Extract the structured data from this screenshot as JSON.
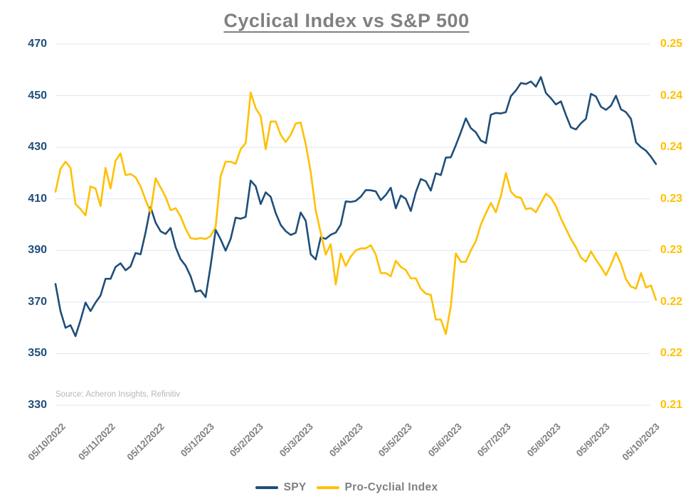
{
  "title": "Cyclical Index vs S&P 500",
  "source_note": "Source: Acheron Insights, Refinitiv",
  "colors": {
    "spy_line": "#1f4e79",
    "pci_line": "#ffc000",
    "left_axis_text": "#1f4e79",
    "right_axis_text": "#ffc000",
    "title_text": "#808080",
    "date_text": "#808080",
    "source_text": "#b7b7b7",
    "gridline": "#dbe5f1",
    "background": "#ffffff"
  },
  "legend": [
    {
      "label": "SPY",
      "color": "#1f4e79"
    },
    {
      "label": "Pro-Cyclial Index",
      "color": "#ffc000"
    }
  ],
  "chart_data": {
    "type": "line",
    "title": "Cyclical Index vs S&P 500",
    "grid": true,
    "legend_position": "bottom",
    "x_tick_labels": [
      "05/10/2022",
      "05/11/2022",
      "05/12/2022",
      "05/1/2023",
      "05/2/2023",
      "05/3/2023",
      "05/4/2023",
      "05/5/2023",
      "05/6/2023",
      "05/7/2023",
      "05/8/2023",
      "05/9/2023",
      "05/10/2023"
    ],
    "sampling_note": "values sampled at ~3-day intervals from 05/10/2022 to 05/10/2023",
    "left_axis": {
      "series": "SPY",
      "min": 330,
      "max": 470,
      "tick_labels": [
        "470",
        "450",
        "430",
        "410",
        "390",
        "370",
        "350",
        "330"
      ]
    },
    "right_axis": {
      "series": "Pro-Cyclial Index",
      "min": 0.215,
      "max": 0.25,
      "tick_labels": [
        "0.25",
        "0.24",
        "0.24",
        "0.23",
        "0.23",
        "0.22",
        "0.22",
        "0.21"
      ]
    },
    "series": [
      {
        "name": "SPY",
        "axis": "left",
        "color": "#1f4e79",
        "values": [
          377,
          366.5,
          360,
          361,
          356.8,
          363,
          369.8,
          366.5,
          369.8,
          372.5,
          379,
          379,
          383.6,
          385,
          382.3,
          383.8,
          389,
          388.5,
          397,
          406.8,
          400.8,
          397.4,
          396.4,
          398.7,
          391.3,
          386.6,
          384.1,
          380,
          374,
          374.5,
          371.9,
          384,
          398,
          394.3,
          389.9,
          394.5,
          402.7,
          402.3,
          403,
          417.1,
          414.9,
          408,
          412.5,
          410.8,
          404.5,
          399.9,
          397.5,
          396,
          396.8,
          404.7,
          401.5,
          388.5,
          386.5,
          395.1,
          394.5,
          396.1,
          396.9,
          400,
          409,
          408.8,
          409.2,
          410.8,
          413.4,
          413.3,
          412.9,
          409.5,
          411.5,
          414.3,
          406.3,
          411.3,
          410,
          405.3,
          412.5,
          417.7,
          416.8,
          413.2,
          419.9,
          419.2,
          426,
          426.1,
          430.8,
          435.8,
          441.2,
          437.4,
          435.8,
          432.6,
          431.6,
          442.6,
          443.3,
          443.1,
          443.6,
          449.8,
          452,
          454.9,
          454.5,
          455.5,
          453.5,
          457.2,
          451,
          449,
          446.6,
          447.8,
          442.5,
          437.7,
          436.9,
          439.3,
          441,
          450.7,
          449.7,
          445.7,
          444.5,
          446.1,
          450,
          444.7,
          443.6,
          441,
          431.9,
          430,
          428.7,
          426.3,
          423.5
        ]
      },
      {
        "name": "Pro-Cyclial Index",
        "axis": "right",
        "color": "#ffc000",
        "values": [
          0.2357,
          0.2379,
          0.2386,
          0.238,
          0.2345,
          0.234,
          0.2334,
          0.2362,
          0.236,
          0.2343,
          0.238,
          0.236,
          0.2387,
          0.2394,
          0.2373,
          0.2374,
          0.2371,
          0.2362,
          0.2349,
          0.2337,
          0.237,
          0.2361,
          0.2352,
          0.2339,
          0.2341,
          0.2333,
          0.2321,
          0.2312,
          0.2311,
          0.2312,
          0.2311,
          0.2314,
          0.2323,
          0.2372,
          0.2386,
          0.2386,
          0.2384,
          0.2398,
          0.2404,
          0.2453,
          0.2438,
          0.243,
          0.2398,
          0.2425,
          0.2425,
          0.2412,
          0.2405,
          0.2412,
          0.2423,
          0.2424,
          0.2403,
          0.2376,
          0.2339,
          0.2317,
          0.2296,
          0.2306,
          0.2267,
          0.2297,
          0.2285,
          0.2294,
          0.23,
          0.2302,
          0.2302,
          0.2305,
          0.2296,
          0.2278,
          0.2278,
          0.2275,
          0.229,
          0.2284,
          0.2281,
          0.2273,
          0.2273,
          0.2263,
          0.2258,
          0.2257,
          0.2233,
          0.2233,
          0.2219,
          0.2246,
          0.2297,
          0.2289,
          0.2289,
          0.23,
          0.2309,
          0.2325,
          0.2336,
          0.2346,
          0.2337,
          0.2353,
          0.2375,
          0.2357,
          0.2352,
          0.2351,
          0.234,
          0.2341,
          0.2337,
          0.2346,
          0.2355,
          0.2351,
          0.2343,
          0.2331,
          0.2321,
          0.2311,
          0.2303,
          0.2293,
          0.2289,
          0.2299,
          0.2291,
          0.2284,
          0.2276,
          0.2286,
          0.2298,
          0.2287,
          0.2272,
          0.2265,
          0.2263,
          0.2278,
          0.2264,
          0.2266,
          0.2252
        ]
      }
    ]
  }
}
